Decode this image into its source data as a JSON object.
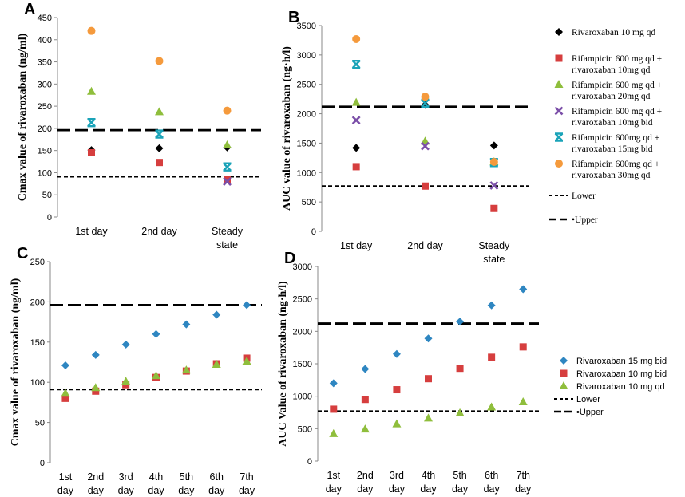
{
  "colors": {
    "black": "#000000",
    "red": "#d63e3e",
    "green": "#8fbe3c",
    "purple": "#7b4fa8",
    "cyan": "#1aa3b8",
    "orange": "#f59a3c",
    "blue": "#2e86c1"
  },
  "chart_data": [
    {
      "panel": "A",
      "type": "scatter",
      "ylabel": "Cmax value of rivaroxaban (ng/ml)",
      "ylim": [
        0,
        450
      ],
      "yticks": [
        0,
        50,
        100,
        150,
        200,
        250,
        300,
        350,
        400,
        450
      ],
      "categories": [
        [
          "1st day"
        ],
        [
          "2nd day"
        ],
        [
          "Steady",
          "state"
        ]
      ],
      "lower": 91,
      "upper": 196,
      "series": [
        {
          "name": "Rivaroxaban 10 mg qd",
          "marker": "diamond",
          "color": "black",
          "values": [
            151,
            155,
            157
          ]
        },
        {
          "name": "Rifampicin 600 mg qd + rivaroxaban 10mg qd",
          "marker": "square",
          "color": "red",
          "values": [
            145,
            123,
            84
          ]
        },
        {
          "name": "Rifampicin 600 mg qd + rivaroxaban 20mg qd",
          "marker": "triangle",
          "color": "green",
          "values": [
            283,
            237,
            162
          ]
        },
        {
          "name": "Rifampicin 600 mg qd + rivaroxaban 10mg bid",
          "marker": "x",
          "color": "purple",
          "values": [
            null,
            null,
            80
          ]
        },
        {
          "name": "Rifampicin 600mg qd + rivaroxaban 15mg bid",
          "marker": "xbar",
          "color": "cyan",
          "values": [
            213,
            187,
            113
          ]
        },
        {
          "name": "Rifampicin 600mg qd + rivaroxaban 30mg qd",
          "marker": "circle",
          "color": "orange",
          "values": [
            420,
            352,
            240
          ]
        }
      ]
    },
    {
      "panel": "B",
      "type": "scatter",
      "ylabel": "AUC value of rivaroxaban (ng·h/l)",
      "ylim": [
        0,
        3500
      ],
      "yticks": [
        0,
        500,
        1000,
        1500,
        2000,
        2500,
        3000,
        3500
      ],
      "categories": [
        [
          "1st day"
        ],
        [
          "2nd day"
        ],
        [
          "Steady",
          "state"
        ]
      ],
      "lower": 770,
      "upper": 2120,
      "series": [
        {
          "name": "Rivaroxaban 10 mg qd",
          "marker": "diamond",
          "color": "black",
          "values": [
            1420,
            2150,
            1460
          ]
        },
        {
          "name": "Rifampicin 600 mg qd + rivaroxaban 10mg qd",
          "marker": "square",
          "color": "red",
          "values": [
            1100,
            770,
            390
          ]
        },
        {
          "name": "Rifampicin 600 mg qd + rivaroxaban 20mg qd",
          "marker": "triangle",
          "color": "green",
          "values": [
            2190,
            1530,
            1180
          ]
        },
        {
          "name": "Rifampicin 600 mg qd + rivaroxaban 10mg bid",
          "marker": "x",
          "color": "purple",
          "values": [
            1890,
            1450,
            780
          ]
        },
        {
          "name": "Rifampicin 600mg qd + rivaroxaban 15mg bid",
          "marker": "xbar",
          "color": "cyan",
          "values": [
            2840,
            2180,
            1170
          ]
        },
        {
          "name": "Rifampicin 600mg qd + rivaroxaban 30mg qd",
          "marker": "circle",
          "color": "orange",
          "values": [
            3270,
            2290,
            1180
          ]
        }
      ]
    },
    {
      "panel": "C",
      "type": "scatter",
      "ylabel": "Cmax value of rivaroxaban (ng/ml)",
      "ylim": [
        0,
        250
      ],
      "yticks": [
        0,
        50,
        100,
        150,
        200,
        250
      ],
      "categories": [
        [
          "1st",
          "day"
        ],
        [
          "2nd",
          "day"
        ],
        [
          "3rd",
          "day"
        ],
        [
          "4th",
          "day"
        ],
        [
          "5th",
          "day"
        ],
        [
          "6th",
          "day"
        ],
        [
          "7th",
          "day"
        ]
      ],
      "lower": 91,
      "upper": 196,
      "series": [
        {
          "name": "Rivaroxaban 15 mg bid",
          "marker": "diamond",
          "color": "blue",
          "values": [
            121,
            134,
            147,
            160,
            172,
            184,
            196
          ]
        },
        {
          "name": "Rivaroxaban 10 mg bid",
          "marker": "square",
          "color": "red",
          "values": [
            80,
            89,
            97,
            106,
            114,
            123,
            130
          ]
        },
        {
          "name": "Rivaroxaban 10 mg qd",
          "marker": "triangle",
          "color": "green",
          "values": [
            86,
            93,
            101,
            108,
            115,
            122,
            126
          ]
        }
      ]
    },
    {
      "panel": "D",
      "type": "scatter",
      "ylabel": "AUC Value of rivaroxaban (ng·h/l)",
      "ylim": [
        0,
        3000
      ],
      "yticks": [
        0,
        500,
        1000,
        1500,
        2000,
        2500,
        3000
      ],
      "categories": [
        [
          "1st",
          "day"
        ],
        [
          "2nd",
          "day"
        ],
        [
          "3rd",
          "day"
        ],
        [
          "4th",
          "day"
        ],
        [
          "5th",
          "day"
        ],
        [
          "6th",
          "day"
        ],
        [
          "7th",
          "day"
        ]
      ],
      "lower": 770,
      "upper": 2120,
      "series": [
        {
          "name": "Rivaroxaban 15 mg bid",
          "marker": "diamond",
          "color": "blue",
          "values": [
            1200,
            1420,
            1650,
            1890,
            2150,
            2400,
            2650
          ]
        },
        {
          "name": "Rivaroxaban 10 mg bid",
          "marker": "square",
          "color": "red",
          "values": [
            800,
            950,
            1100,
            1270,
            1430,
            1600,
            1760
          ]
        },
        {
          "name": "Rivaroxaban 10 mg qd",
          "marker": "triangle",
          "color": "green",
          "values": [
            420,
            490,
            570,
            660,
            740,
            830,
            910
          ]
        }
      ]
    }
  ],
  "legend_top": {
    "items": [
      {
        "lines": [
          "Rivaroxaban 10 mg qd"
        ],
        "marker": "diamond",
        "color": "black"
      },
      {
        "lines": [
          "Rifampicin 600 mg qd +",
          "rivaroxaban 10mg qd"
        ],
        "marker": "square",
        "color": "red"
      },
      {
        "lines": [
          "Rifampicin 600 mg qd +",
          "rivaroxaban 20mg qd"
        ],
        "marker": "triangle",
        "color": "green"
      },
      {
        "lines": [
          "Rifampicin 600 mg qd +",
          "rivaroxaban 10mg bid"
        ],
        "marker": "x",
        "color": "purple"
      },
      {
        "lines": [
          "Rifampicin 600mg qd +",
          "rivaroxaban 15mg bid"
        ],
        "marker": "xbar",
        "color": "cyan"
      },
      {
        "lines": [
          "Rifampicin 600mg qd +",
          "rivaroxaban 30mg qd"
        ],
        "marker": "circle",
        "color": "orange"
      },
      {
        "lines": [
          "Lower"
        ],
        "marker": "dash-short",
        "color": "black"
      },
      {
        "lines": [
          "•Upper"
        ],
        "marker": "dash-long",
        "color": "black"
      }
    ]
  },
  "legend_bottom": {
    "items": [
      {
        "lines": [
          "Rivaroxaban 15 mg bid"
        ],
        "marker": "diamond",
        "color": "blue"
      },
      {
        "lines": [
          "Rivaroxaban 10 mg bid"
        ],
        "marker": "square",
        "color": "red"
      },
      {
        "lines": [
          "Rivaroxaban 10 mg qd"
        ],
        "marker": "triangle",
        "color": "green"
      },
      {
        "lines": [
          "Lower"
        ],
        "marker": "dash-short",
        "color": "black"
      },
      {
        "lines": [
          "•Upper"
        ],
        "marker": "dash-long",
        "color": "black"
      }
    ]
  }
}
